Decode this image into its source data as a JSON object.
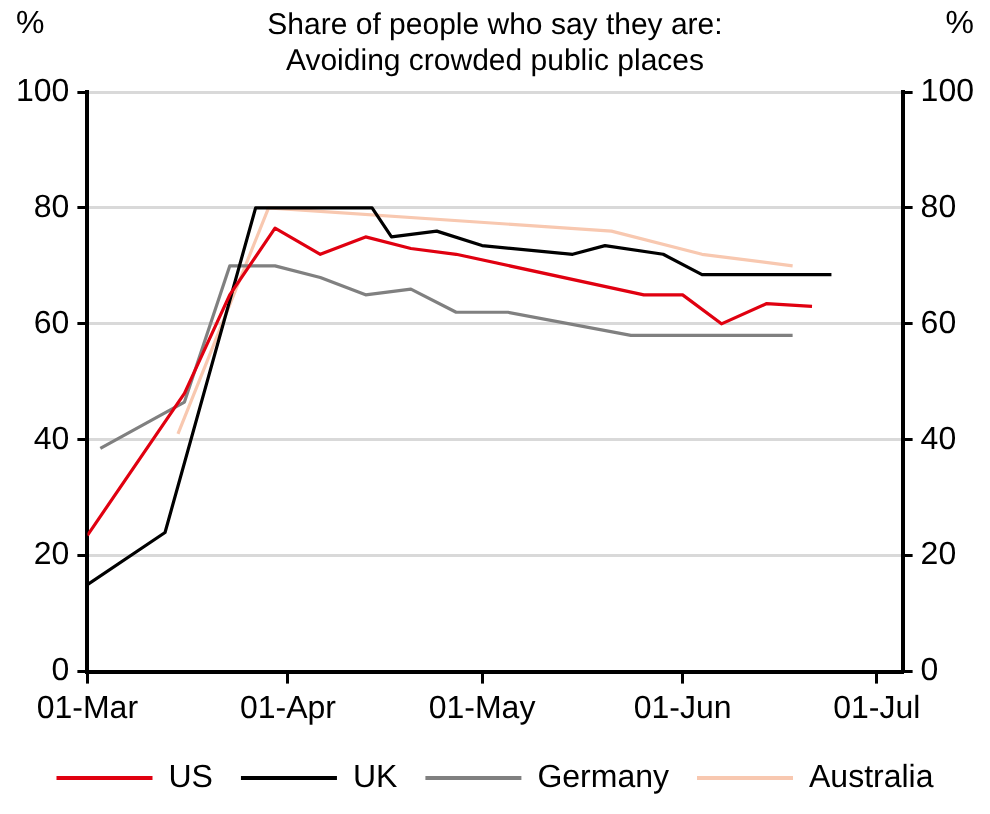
{
  "chart_data": {
    "type": "line",
    "title": [
      "Share of people who say they are:",
      "Avoiding crowded public places"
    ],
    "ylabel": "%",
    "y2label": "%",
    "xlim": [
      "--03-01",
      "--07-05"
    ],
    "xticks": [
      {
        "value": "--03-01",
        "label": "01-Mar"
      },
      {
        "value": "--04-01",
        "label": "01-Apr"
      },
      {
        "value": "--05-01",
        "label": "01-May"
      },
      {
        "value": "--06-01",
        "label": "01-Jun"
      },
      {
        "value": "--07-01",
        "label": "01-Jul"
      }
    ],
    "ylim": [
      0,
      100
    ],
    "yticks": [
      0,
      20,
      40,
      60,
      80,
      100
    ],
    "y2lim": [
      0,
      100
    ],
    "y2ticks": [
      0,
      20,
      40,
      60,
      80,
      100
    ],
    "grid": "y",
    "legend": "bottom",
    "marker": "none",
    "line_style": "solid",
    "series": [
      {
        "name": "US",
        "color": "#e00010",
        "x": [
          "--03-01",
          "--03-16",
          "--03-23",
          "--03-30",
          "--04-06",
          "--04-13",
          "--04-20",
          "--04-27",
          "--05-26",
          "--06-01",
          "--06-07",
          "--06-14",
          "--06-21"
        ],
        "values": [
          23.5,
          48,
          65,
          76.5,
          72,
          75,
          73,
          72,
          65,
          65,
          60,
          63.5,
          63
        ]
      },
      {
        "name": "UK",
        "color": "#000000",
        "x": [
          "--03-01",
          "--03-13",
          "--03-27",
          "--04-14",
          "--04-17",
          "--04-24",
          "--05-01",
          "--05-15",
          "--05-20",
          "--05-29",
          "--06-04",
          "--06-24"
        ],
        "values": [
          15,
          24,
          80,
          80,
          75,
          76,
          73.5,
          72,
          73.5,
          72,
          68.5,
          68.5
        ]
      },
      {
        "name": "Germany",
        "color": "#808080",
        "x": [
          "--03-03",
          "--03-16",
          "--03-23",
          "--03-30",
          "--04-06",
          "--04-13",
          "--04-20",
          "--04-27",
          "--05-05",
          "--05-24",
          "--06-18"
        ],
        "values": [
          38.5,
          46.5,
          70,
          70,
          68,
          65,
          66,
          62,
          62,
          58,
          58
        ]
      },
      {
        "name": "Australia",
        "color": "#f8c8b0",
        "x": [
          "--03-15",
          "--03-29",
          "--05-21",
          "--06-04",
          "--06-18"
        ],
        "values": [
          41,
          80,
          76,
          72,
          70
        ]
      }
    ]
  }
}
